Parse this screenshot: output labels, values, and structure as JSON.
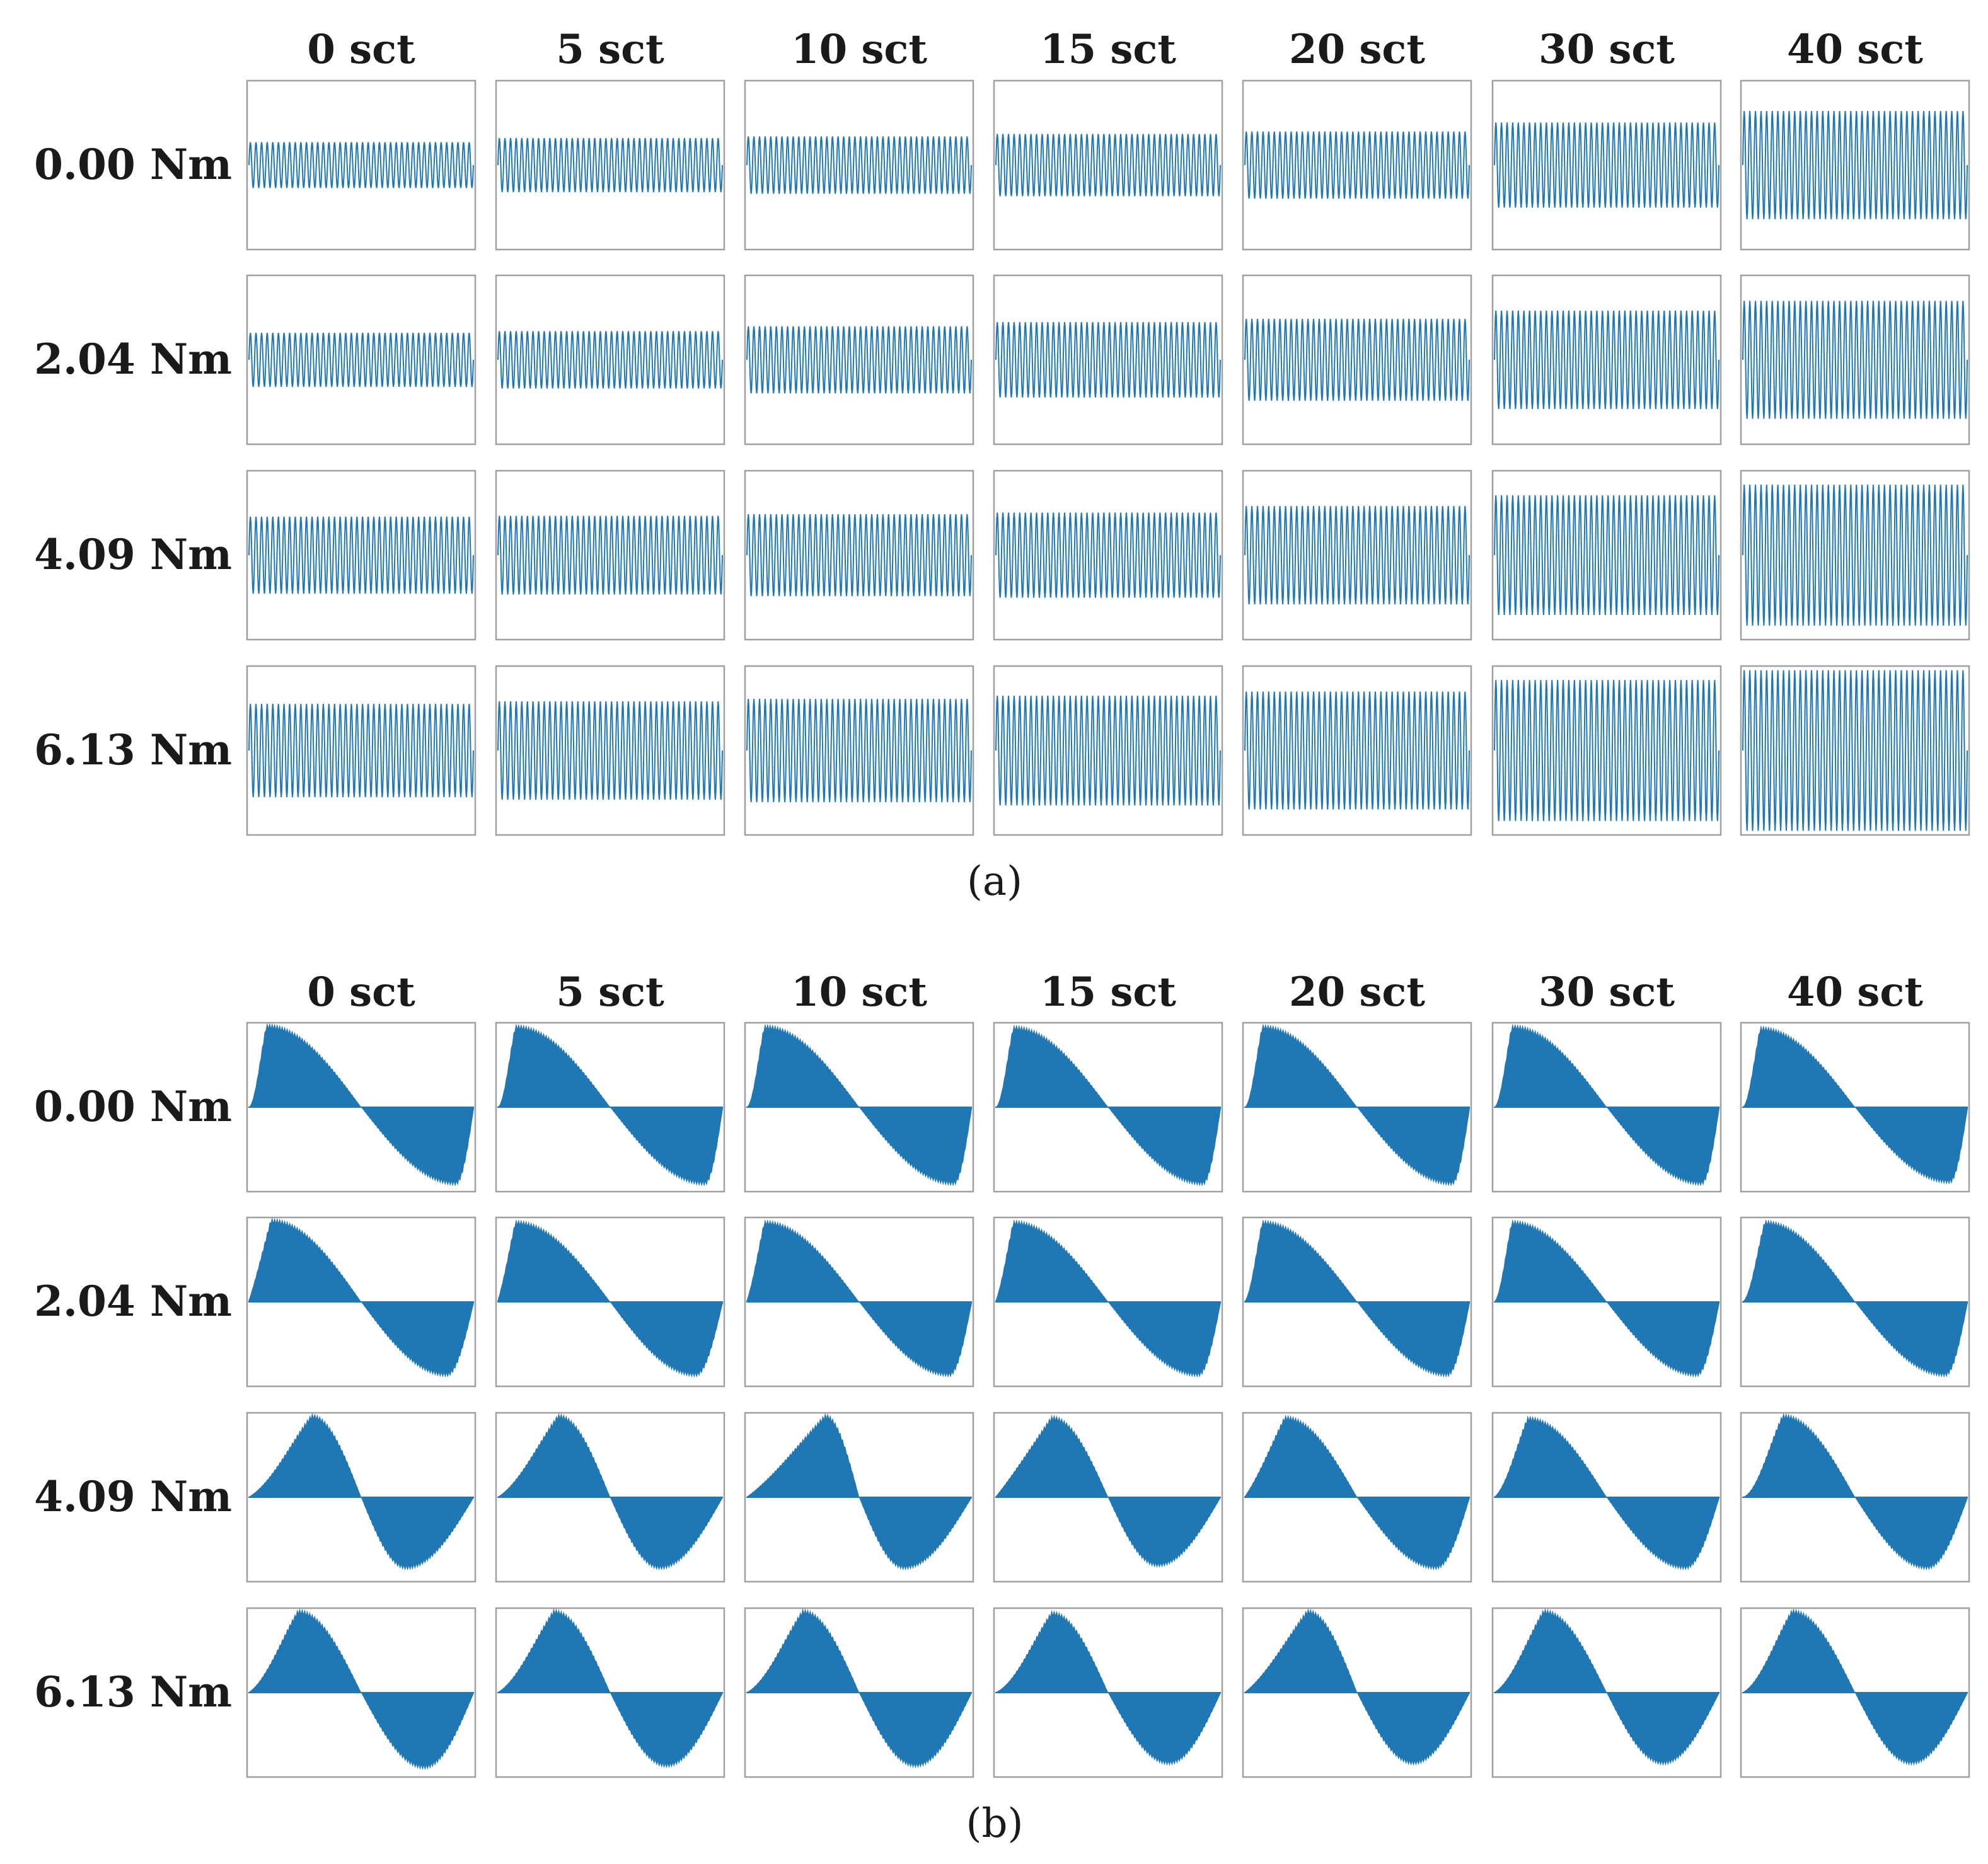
{
  "colors": {
    "series": "#1f77b4",
    "frame": "#a0a0a0",
    "text": "#1a1a1a"
  },
  "chart_data": [
    {
      "type": "line",
      "panel_id": "a",
      "caption": "(a)",
      "columns": [
        "0 sct",
        "5 sct",
        "10 sct",
        "15 sct",
        "20 sct",
        "30 sct",
        "40 sct"
      ],
      "rows": [
        "0.00 Nm",
        "2.04 Nm",
        "4.09 Nm",
        "6.13 Nm"
      ],
      "relative_amplitude": [
        [
          0.28,
          0.33,
          0.35,
          0.38,
          0.41,
          0.52,
          0.66
        ],
        [
          0.33,
          0.35,
          0.41,
          0.46,
          0.5,
          0.6,
          0.72
        ],
        [
          0.47,
          0.48,
          0.5,
          0.52,
          0.6,
          0.73,
          0.86
        ],
        [
          0.57,
          0.6,
          0.63,
          0.67,
          0.72,
          0.86,
          0.98
        ]
      ],
      "cycles_shown": 40,
      "grid": false,
      "legend": "none"
    },
    {
      "type": "area",
      "panel_id": "b",
      "caption": "(b)",
      "columns": [
        "0 sct",
        "5 sct",
        "10 sct",
        "15 sct",
        "20 sct",
        "30 sct",
        "40 sct"
      ],
      "rows": [
        "0.00 Nm",
        "2.04 Nm",
        "4.09 Nm",
        "6.13 Nm"
      ],
      "envelope_description": "filled high-frequency carrier modulated by a slow envelope; positive lobe then negative lobe per cell",
      "envelope_profiles": [
        [
          {
            "peak_pos": 0.08,
            "peak": 0.98,
            "plateau": 0.0,
            "trough_pos": 0.92,
            "trough": -0.92
          },
          {
            "peak_pos": 0.08,
            "peak": 0.97,
            "plateau": 0.0,
            "trough_pos": 0.92,
            "trough": -0.92
          },
          {
            "peak_pos": 0.08,
            "peak": 0.97,
            "plateau": 0.0,
            "trough_pos": 0.92,
            "trough": -0.92
          },
          {
            "peak_pos": 0.08,
            "peak": 0.96,
            "plateau": 0.0,
            "trough_pos": 0.92,
            "trough": -0.92
          },
          {
            "peak_pos": 0.08,
            "peak": 0.97,
            "plateau": 0.0,
            "trough_pos": 0.92,
            "trough": -0.92
          },
          {
            "peak_pos": 0.08,
            "peak": 0.97,
            "plateau": 0.0,
            "trough_pos": 0.92,
            "trough": -0.92
          },
          {
            "peak_pos": 0.08,
            "peak": 0.95,
            "plateau": 0.0,
            "trough_pos": 0.92,
            "trough": -0.9
          }
        ],
        [
          {
            "peak_pos": 0.1,
            "peak": 0.98,
            "plateau": 0.82,
            "trough_pos": 0.88,
            "trough": -0.88
          },
          {
            "peak_pos": 0.08,
            "peak": 0.96,
            "plateau": 0.7,
            "trough_pos": 0.88,
            "trough": -0.88
          },
          {
            "peak_pos": 0.08,
            "peak": 0.96,
            "plateau": 0.6,
            "trough_pos": 0.9,
            "trough": -0.88
          },
          {
            "peak_pos": 0.08,
            "peak": 0.96,
            "plateau": 0.55,
            "trough_pos": 0.9,
            "trough": -0.88
          },
          {
            "peak_pos": 0.08,
            "peak": 0.96,
            "plateau": 0.2,
            "trough_pos": 0.9,
            "trough": -0.88
          },
          {
            "peak_pos": 0.08,
            "peak": 0.96,
            "plateau": 0.1,
            "trough_pos": 0.9,
            "trough": -0.88
          },
          {
            "peak_pos": 0.1,
            "peak": 0.96,
            "plateau": 0.1,
            "trough_pos": 0.9,
            "trough": -0.88
          }
        ],
        [
          {
            "peak_pos": 0.28,
            "peak": 0.98,
            "plateau": 0.45,
            "trough_pos": 0.7,
            "trough": -0.85
          },
          {
            "peak_pos": 0.27,
            "peak": 0.98,
            "plateau": 0.45,
            "trough_pos": 0.72,
            "trough": -0.85
          },
          {
            "peak_pos": 0.35,
            "peak": 0.98,
            "plateau": 0.7,
            "trough_pos": 0.7,
            "trough": -0.85
          },
          {
            "peak_pos": 0.25,
            "peak": 0.96,
            "plateau": 0.85,
            "trough_pos": 0.72,
            "trough": -0.82
          },
          {
            "peak_pos": 0.18,
            "peak": 0.96,
            "plateau": 0.7,
            "trough_pos": 0.85,
            "trough": -0.85
          },
          {
            "peak_pos": 0.15,
            "peak": 0.95,
            "plateau": 0.3,
            "trough_pos": 0.85,
            "trough": -0.85
          },
          {
            "peak_pos": 0.18,
            "peak": 0.98,
            "plateau": 0.1,
            "trough_pos": 0.82,
            "trough": -0.85
          }
        ],
        [
          {
            "peak_pos": 0.22,
            "peak": 0.98,
            "plateau": 0.4,
            "trough_pos": 0.78,
            "trough": -0.9
          },
          {
            "peak_pos": 0.25,
            "peak": 0.98,
            "plateau": 0.4,
            "trough_pos": 0.75,
            "trough": -0.88
          },
          {
            "peak_pos": 0.25,
            "peak": 0.98,
            "plateau": 0.35,
            "trough_pos": 0.75,
            "trough": -0.88
          },
          {
            "peak_pos": 0.25,
            "peak": 0.96,
            "plateau": 0.3,
            "trough_pos": 0.77,
            "trough": -0.85
          },
          {
            "peak_pos": 0.28,
            "peak": 0.98,
            "plateau": 0.6,
            "trough_pos": 0.75,
            "trough": -0.85
          },
          {
            "peak_pos": 0.22,
            "peak": 0.98,
            "plateau": 0.35,
            "trough_pos": 0.75,
            "trough": -0.85
          },
          {
            "peak_pos": 0.22,
            "peak": 0.98,
            "plateau": 0.3,
            "trough_pos": 0.75,
            "trough": -0.85
          }
        ]
      ],
      "grid": false,
      "legend": "none"
    }
  ]
}
